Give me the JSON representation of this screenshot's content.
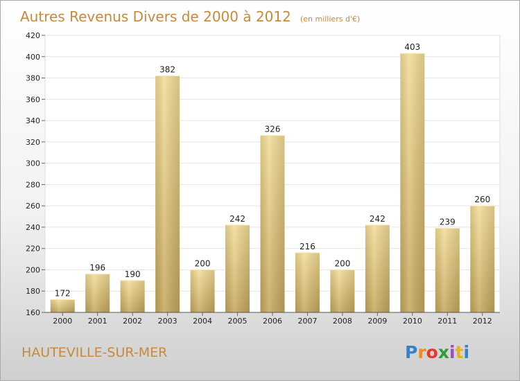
{
  "chart_data": {
    "type": "bar",
    "title": "Autres Revenus Divers de 2000 à 2012",
    "subtitle": "(en milliers d'€)",
    "categories": [
      "2000",
      "2001",
      "2002",
      "2003",
      "2004",
      "2005",
      "2006",
      "2007",
      "2008",
      "2009",
      "2010",
      "2011",
      "2012"
    ],
    "values": [
      172,
      196,
      190,
      382,
      200,
      242,
      326,
      216,
      200,
      242,
      403,
      239,
      260
    ],
    "ylim": [
      160,
      420
    ],
    "yticks": [
      "160",
      "180",
      "200",
      "220",
      "240",
      "260",
      "280",
      "300",
      "320",
      "340",
      "360",
      "380",
      "400",
      "420"
    ],
    "grid": true,
    "bar_color": "#e8cf80"
  },
  "location": "HAUTEVILLE-SUR-MER",
  "brand": {
    "name": "Proxiti",
    "letters": [
      "P",
      "r",
      "o",
      "x",
      "i",
      "t",
      "i"
    ],
    "colors": [
      "#3c7fc8",
      "#f08a1c",
      "#e23a2a",
      "#2f9a3c",
      "#9a4fb8",
      "#e8b21a",
      "#3c7fc8"
    ]
  }
}
